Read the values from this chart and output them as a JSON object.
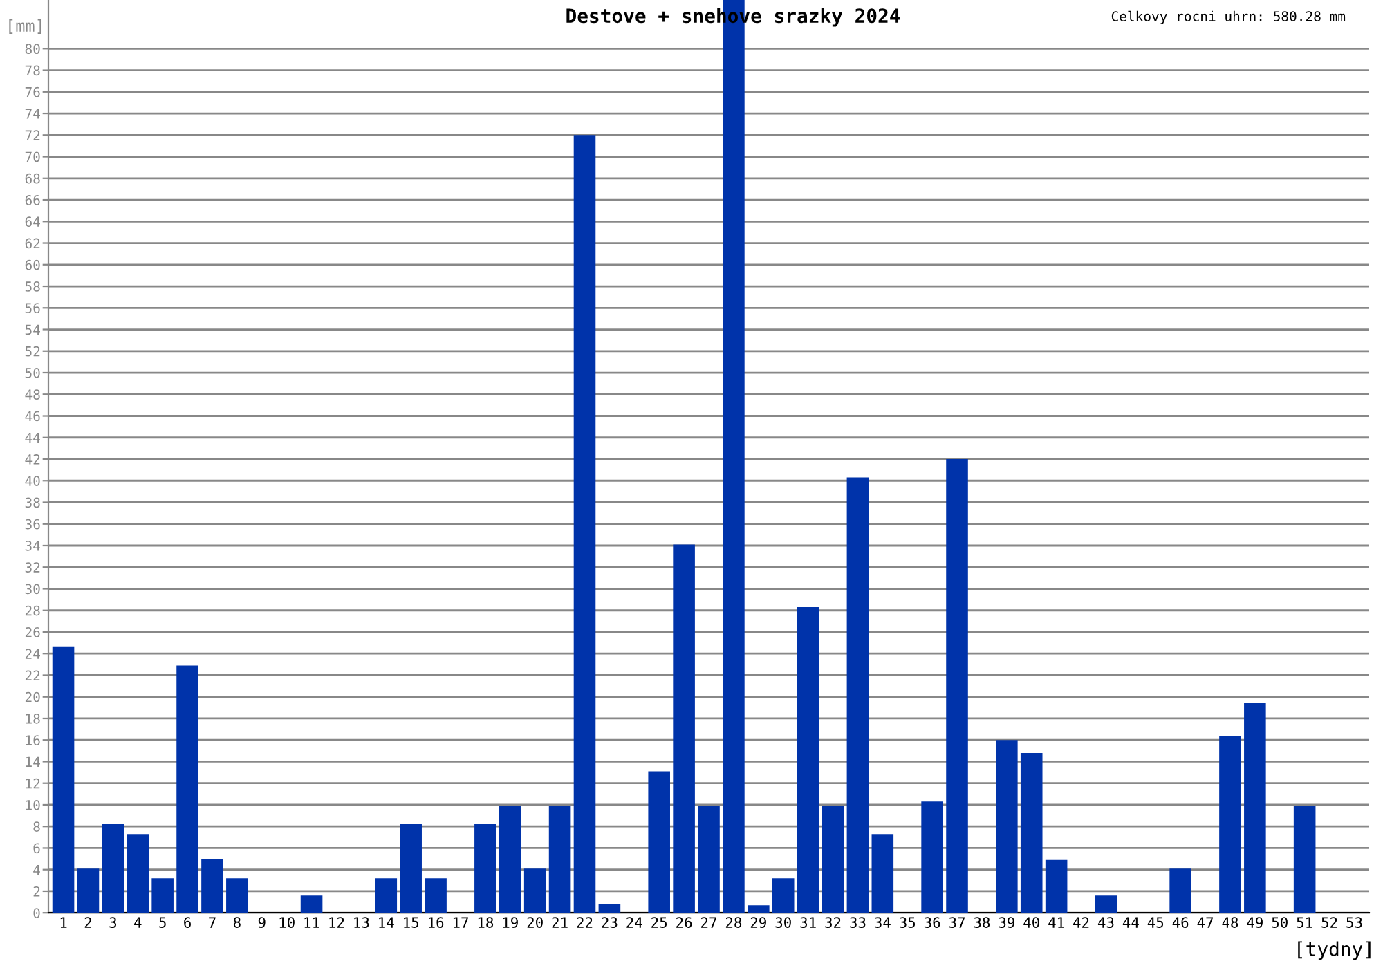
{
  "chart_data": {
    "type": "bar",
    "title": "Destove + snehove srazky 2024",
    "xlabel": "[tydny]",
    "ylabel": "[mm]",
    "annotations": [
      "Celkovy rocni uhrn: 580.28 mm"
    ],
    "categories": [
      "1",
      "2",
      "3",
      "4",
      "5",
      "6",
      "7",
      "8",
      "9",
      "10",
      "11",
      "12",
      "13",
      "14",
      "15",
      "16",
      "17",
      "18",
      "19",
      "20",
      "21",
      "22",
      "23",
      "24",
      "25",
      "26",
      "27",
      "28",
      "29",
      "30",
      "31",
      "32",
      "33",
      "34",
      "35",
      "36",
      "37",
      "38",
      "39",
      "40",
      "41",
      "42",
      "43",
      "44",
      "45",
      "46",
      "47",
      "48",
      "49",
      "50",
      "51",
      "52",
      "53"
    ],
    "values": [
      24.6,
      4.1,
      8.2,
      7.3,
      3.2,
      22.9,
      5.0,
      3.2,
      0,
      0,
      1.6,
      0,
      0,
      3.2,
      8.2,
      3.2,
      0,
      8.2,
      9.9,
      4.1,
      9.9,
      72.0,
      0.8,
      0,
      13.1,
      34.1,
      9.9,
      84.5,
      0.7,
      3.2,
      28.3,
      9.9,
      40.3,
      7.3,
      0,
      10.3,
      42.0,
      0,
      16.0,
      14.8,
      4.9,
      0,
      1.6,
      0,
      0,
      4.1,
      0,
      16.4,
      19.4,
      0,
      9.9,
      0,
      0
    ],
    "color": "#0033aa",
    "ylim": [
      0,
      84.5
    ],
    "yticks": [
      0,
      2,
      4,
      6,
      8,
      10,
      12,
      14,
      16,
      18,
      20,
      22,
      24,
      26,
      28,
      30,
      32,
      34,
      36,
      38,
      40,
      42,
      44,
      46,
      48,
      50,
      52,
      54,
      56,
      58,
      60,
      62,
      64,
      66,
      68,
      70,
      72,
      74,
      76,
      78,
      80
    ],
    "grid": "y",
    "legend": false
  }
}
